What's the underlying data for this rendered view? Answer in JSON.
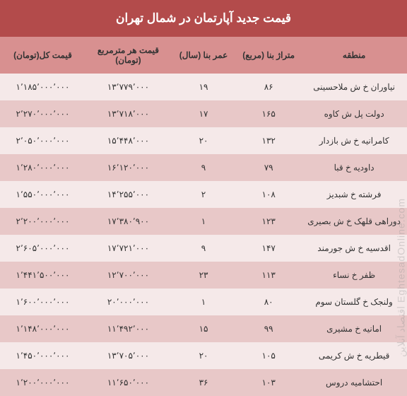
{
  "title": "قیمت جدید آپارتمان در شمال تهران",
  "watermark": "EghtesadOnline.com اقتصاد آنلاین",
  "colors": {
    "title_bg": "#b34b4b",
    "title_text": "#ffffff",
    "header_bg": "#d89090",
    "row_odd_bg": "#f5e9e9",
    "row_even_bg": "#e8c8c8",
    "text": "#333333"
  },
  "columns": [
    {
      "key": "region",
      "label": "منطقه"
    },
    {
      "key": "area",
      "label": "متراژ بنا (مربع)"
    },
    {
      "key": "age",
      "label": "عمر بنا (سال)"
    },
    {
      "key": "price_per_sqm",
      "label": "قیمت هر مترمربع (تومان)"
    },
    {
      "key": "total_price",
      "label": "قیمت کل(تومان)"
    }
  ],
  "rows": [
    {
      "region": "نیاوران خ ش ملاحسینی",
      "area": "۸۶",
      "age": "۱۹",
      "price_per_sqm": "۱۳٬۷۷۹٬۰۰۰",
      "total_price": "۱٬۱۸۵٬۰۰۰٬۰۰۰"
    },
    {
      "region": "دولت پل ش کاوه",
      "area": "۱۶۵",
      "age": "۱۷",
      "price_per_sqm": "۱۳٬۷۱۸٬۰۰۰",
      "total_price": "۲٬۲۷۰٬۰۰۰٬۰۰۰"
    },
    {
      "region": "کامرانیه خ ش بازدار",
      "area": "۱۳۲",
      "age": "۲۰",
      "price_per_sqm": "۱۵٬۴۴۸٬۰۰۰",
      "total_price": "۲٬۰۵۰٬۰۰۰٬۰۰۰"
    },
    {
      "region": "داودیه خ قبا",
      "area": "۷۹",
      "age": "۹",
      "price_per_sqm": "۱۶٬۱۲۰٬۰۰۰",
      "total_price": "۱٬۲۸۰٬۰۰۰٬۰۰۰"
    },
    {
      "region": "فرشته خ شبدیز",
      "area": "۱۰۸",
      "age": "۲",
      "price_per_sqm": "۱۴٬۲۵۵٬۰۰۰",
      "total_price": "۱٬۵۵۰٬۰۰۰٬۰۰۰"
    },
    {
      "region": "دوراهی قلهک خ ش بصیری",
      "area": "۱۲۳",
      "age": "۱",
      "price_per_sqm": "۱۷٬۳۸۰٬۹۰۰",
      "total_price": "۲٬۲۰۰٬۰۰۰٬۰۰۰"
    },
    {
      "region": "اقدسیه خ ش جورمند",
      "area": "۱۴۷",
      "age": "۹",
      "price_per_sqm": "۱۷٬۷۲۱٬۰۰۰",
      "total_price": "۲٬۶۰۵٬۰۰۰٬۰۰۰"
    },
    {
      "region": "ظفر خ نساء",
      "area": "۱۱۳",
      "age": "۲۳",
      "price_per_sqm": "۱۲٬۷۰۰٬۰۰۰",
      "total_price": "۱٬۴۴۱٬۵۰۰٬۰۰۰"
    },
    {
      "region": "ولنجک خ گلستان سوم",
      "area": "۸۰",
      "age": "۱",
      "price_per_sqm": "۲۰٬۰۰۰٬۰۰۰",
      "total_price": "۱٬۶۰۰٬۰۰۰٬۰۰۰"
    },
    {
      "region": "امانیه خ مشیری",
      "area": "۹۹",
      "age": "۱۵",
      "price_per_sqm": "۱۱٬۴۹۲٬۰۰۰",
      "total_price": "۱٬۱۴۸٬۰۰۰٬۰۰۰"
    },
    {
      "region": "قیطریه خ ش کریمی",
      "area": "۱۰۵",
      "age": "۲۰",
      "price_per_sqm": "۱۳٬۷۰۵٬۰۰۰",
      "total_price": "۱٬۴۵۰٬۰۰۰٬۰۰۰"
    },
    {
      "region": "احتشامیه دروس",
      "area": "۱۰۳",
      "age": "۳۶",
      "price_per_sqm": "۱۱٬۶۵۰٬۰۰۰",
      "total_price": "۱٬۲۰۰٬۰۰۰٬۰۰۰"
    }
  ]
}
